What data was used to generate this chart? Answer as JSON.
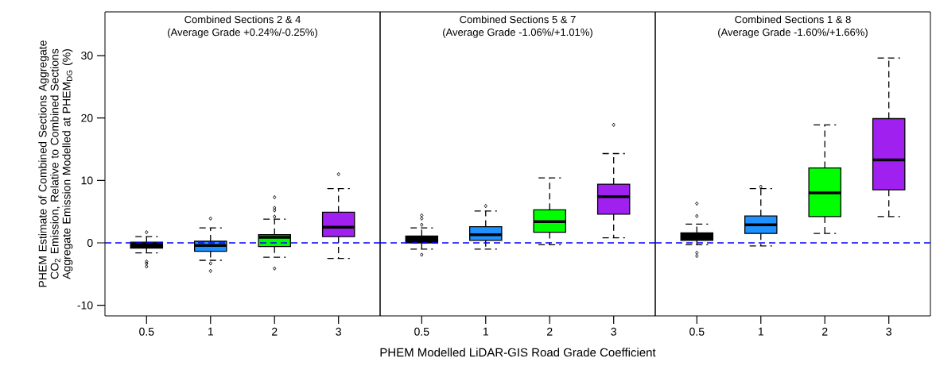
{
  "chart_data": [
    {
      "type": "box",
      "title": "Combined Sections 2 & 4",
      "subtitle": "(Average Grade +0.24%/-0.25%)",
      "ylabel": "PHEM Estimate of Combined Sections Aggregate CO$_{2}$ Emission, Relative to Combined Sections Aggregate Emission Modelled at PHEM$_{DG}$ (%)",
      "categories": [
        "0.5",
        "1",
        "2",
        "3"
      ],
      "colors": [
        "#000000",
        "#1e90ff",
        "#00ff00",
        "#a020f0"
      ],
      "marker": "diamond",
      "ylim": [
        -11.7,
        37
      ],
      "yticks": [
        -10,
        0,
        10,
        20,
        30
      ],
      "boxes": [
        {
          "low": -1.6,
          "q1": -0.85,
          "median": -0.5,
          "q3": 0.1,
          "high": 1.0,
          "outliers": [
            1.7,
            -3.0,
            -3.3,
            -3.8
          ]
        },
        {
          "low": -2.8,
          "q1": -1.35,
          "median": -0.4,
          "q3": 0.25,
          "high": 2.4,
          "outliers": [
            3.9,
            -3.3,
            -4.5
          ]
        },
        {
          "low": -2.3,
          "q1": -0.6,
          "median": 0.9,
          "q3": 1.3,
          "high": 3.8,
          "outliers": [
            7.3,
            5.6,
            5.2,
            4.2,
            -4.1
          ]
        },
        {
          "low": -2.5,
          "q1": 1.0,
          "median": 2.5,
          "q3": 4.9,
          "high": 8.7,
          "outliers": [
            11.0
          ]
        }
      ],
      "ref_lines": [
        {
          "axis": "y",
          "value": 0,
          "color": "#0000ff",
          "line_style": "dashed"
        }
      ]
    },
    {
      "type": "box",
      "title": "Combined Sections 5 & 7",
      "subtitle": "(Average Grade -1.06%/+1.01%)",
      "xlabel": "PHEM Modelled LiDAR-GIS Road Grade Coefficient",
      "categories": [
        "0.5",
        "1",
        "2",
        "3"
      ],
      "colors": [
        "#000000",
        "#1e90ff",
        "#00ff00",
        "#a020f0"
      ],
      "marker": "diamond",
      "ylim": [
        -11.7,
        37
      ],
      "tick_labels": "x",
      "boxes": [
        {
          "low": -1.0,
          "q1": 0.0,
          "median": 0.55,
          "q3": 1.1,
          "high": 2.4,
          "outliers": [
            4.4,
            3.9,
            2.9,
            -1.9
          ]
        },
        {
          "low": -1.0,
          "q1": 0.4,
          "median": 1.3,
          "q3": 2.6,
          "high": 5.1,
          "outliers": [
            5.9
          ]
        },
        {
          "low": -0.3,
          "q1": 1.7,
          "median": 3.4,
          "q3": 5.3,
          "high": 10.4
        },
        {
          "low": 0.8,
          "q1": 4.6,
          "median": 7.4,
          "q3": 9.4,
          "high": 14.3,
          "outliers": [
            18.9
          ]
        }
      ],
      "ref_lines": [
        {
          "axis": "y",
          "value": 0,
          "color": "#0000ff",
          "line_style": "dashed"
        }
      ]
    },
    {
      "type": "box",
      "title": "Combined Sections 1 & 8",
      "subtitle": "(Average Grade -1.60%/+1.66%)",
      "categories": [
        "0.5",
        "1",
        "2",
        "3"
      ],
      "colors": [
        "#000000",
        "#1e90ff",
        "#00ff00",
        "#a020f0"
      ],
      "marker": "diamond",
      "ylim": [
        -11.7,
        37
      ],
      "tick_labels": "x",
      "boxes": [
        {
          "low": -0.3,
          "q1": 0.4,
          "median": 1.0,
          "q3": 1.6,
          "high": 3.0,
          "outliers": [
            6.3,
            4.3,
            -1.6,
            -2.1
          ]
        },
        {
          "low": -0.5,
          "q1": 1.5,
          "median": 2.9,
          "q3": 4.3,
          "high": 8.7,
          "outliers": [
            9.0
          ]
        },
        {
          "low": 1.5,
          "q1": 4.2,
          "median": 8.0,
          "q3": 12.0,
          "high": 18.9
        },
        {
          "low": 4.2,
          "q1": 8.5,
          "median": 13.3,
          "q3": 19.9,
          "high": 29.6
        }
      ],
      "ref_lines": [
        {
          "axis": "y",
          "value": 0,
          "color": "#0000ff",
          "line_style": "dashed"
        }
      ]
    }
  ]
}
